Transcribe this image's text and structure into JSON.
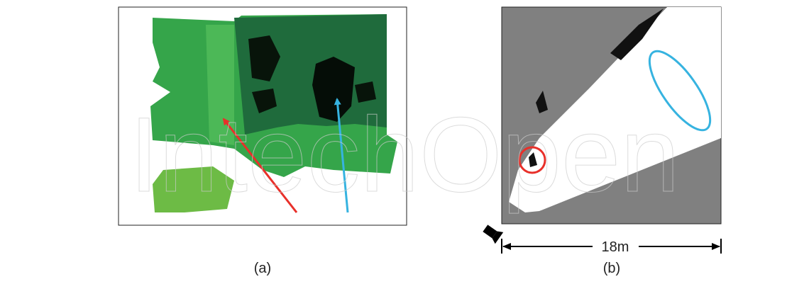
{
  "panels": [
    {
      "label": "(a)"
    },
    {
      "label": "(b)",
      "scale_label": "18m"
    }
  ],
  "watermark": "IntechOpen"
}
